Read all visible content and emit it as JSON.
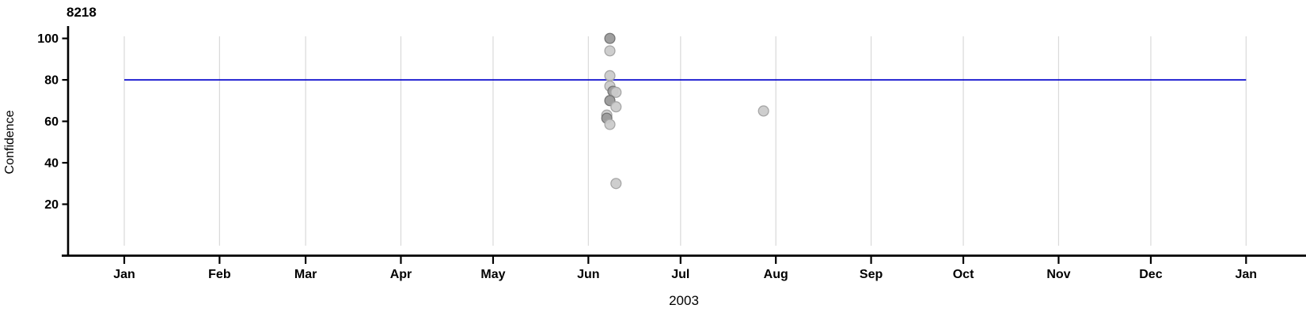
{
  "chart_data": {
    "type": "scatter",
    "title": "8218",
    "xlabel": "2003",
    "ylabel": "Confidence",
    "grid": "vertical-month-gridlines",
    "legend": "none",
    "ylim": [
      0,
      101
    ],
    "y_ticks": [
      20,
      40,
      60,
      80,
      100
    ],
    "x_ticks": [
      {
        "label": "Jan",
        "date": "2003-01-01"
      },
      {
        "label": "Feb",
        "date": "2003-02-01"
      },
      {
        "label": "Mar",
        "date": "2003-03-01"
      },
      {
        "label": "Apr",
        "date": "2003-04-01"
      },
      {
        "label": "May",
        "date": "2003-05-01"
      },
      {
        "label": "Jun",
        "date": "2003-06-01"
      },
      {
        "label": "Jul",
        "date": "2003-07-01"
      },
      {
        "label": "Aug",
        "date": "2003-08-01"
      },
      {
        "label": "Sep",
        "date": "2003-09-01"
      },
      {
        "label": "Oct",
        "date": "2003-10-01"
      },
      {
        "label": "Nov",
        "date": "2003-11-01"
      },
      {
        "label": "Dec",
        "date": "2003-12-01"
      },
      {
        "label": "Jan",
        "date": "2004-01-01"
      }
    ],
    "reference_line": {
      "y": 80,
      "x_start": "2003-01-01",
      "x_end": "2004-01-01",
      "color": "#0b0bcd"
    },
    "points": [
      {
        "date": "2003-06-08",
        "confidence": 100,
        "shade": "dark"
      },
      {
        "date": "2003-06-08",
        "confidence": 94,
        "shade": "light"
      },
      {
        "date": "2003-06-08",
        "confidence": 82,
        "shade": "light"
      },
      {
        "date": "2003-06-08",
        "confidence": 77,
        "shade": "light"
      },
      {
        "date": "2003-06-09",
        "confidence": 74.5,
        "shade": "dark"
      },
      {
        "date": "2003-06-10",
        "confidence": 74,
        "shade": "light"
      },
      {
        "date": "2003-06-08",
        "confidence": 70,
        "shade": "dark"
      },
      {
        "date": "2003-06-10",
        "confidence": 67,
        "shade": "light"
      },
      {
        "date": "2003-06-07",
        "confidence": 63,
        "shade": "light"
      },
      {
        "date": "2003-06-07",
        "confidence": 61.5,
        "shade": "dark"
      },
      {
        "date": "2003-06-08",
        "confidence": 58.5,
        "shade": "light"
      },
      {
        "date": "2003-06-10",
        "confidence": 30,
        "shade": "light"
      },
      {
        "date": "2003-07-28",
        "confidence": 65,
        "shade": "light"
      }
    ],
    "colors": {
      "background": "#ffffff",
      "gridline": "#d9d9d9",
      "axis": "#000000",
      "reference_line": "#0b0bcd",
      "point_light_fill": "#cbcbcb",
      "point_light_stroke": "#a6a6a6",
      "point_dark_fill": "#9a9a9a",
      "point_dark_stroke": "#757575"
    }
  }
}
